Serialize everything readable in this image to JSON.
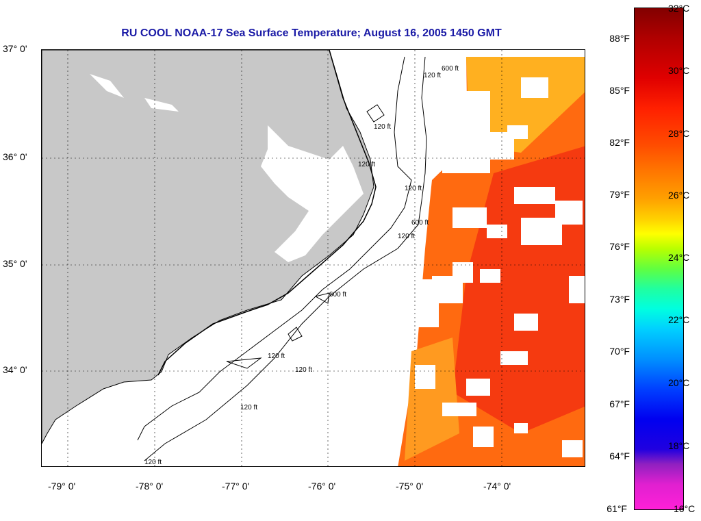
{
  "title": "RU COOL  NOAA-17  Sea Surface Temperature;  August 16, 2005 1450 GMT",
  "lat_labels": [
    "37° 0'",
    "36° 0'",
    "35° 0'",
    "34° 0'"
  ],
  "lon_labels": [
    "-79° 0'",
    "-78° 0'",
    "-77° 0'",
    "-76° 0'",
    "-75° 0'",
    "-74° 0'"
  ],
  "contour_labels": [
    "120 ft",
    "120 ft",
    "120 ft",
    "120 ft",
    "600 ft",
    "120 ft",
    "600 ft",
    "120 ft",
    "120 ft",
    "120 ft",
    "600 ft",
    "120 ft"
  ],
  "colorbar": {
    "fahrenheit": [
      "88°F",
      "85°F",
      "82°F",
      "79°F",
      "76°F",
      "73°F",
      "70°F",
      "67°F",
      "64°F",
      "61°F"
    ],
    "celsius": [
      "32°C",
      "30°C",
      "28°C",
      "26°C",
      "24°C",
      "22°C",
      "20°C",
      "18°C",
      "16°C"
    ]
  },
  "colors": {
    "land": "#c8c8c8",
    "title": "#1a1aa6",
    "sst_warm": "#ff3a00",
    "sst_mid": "#ff7a10",
    "sst_cool": "#ffb020"
  }
}
